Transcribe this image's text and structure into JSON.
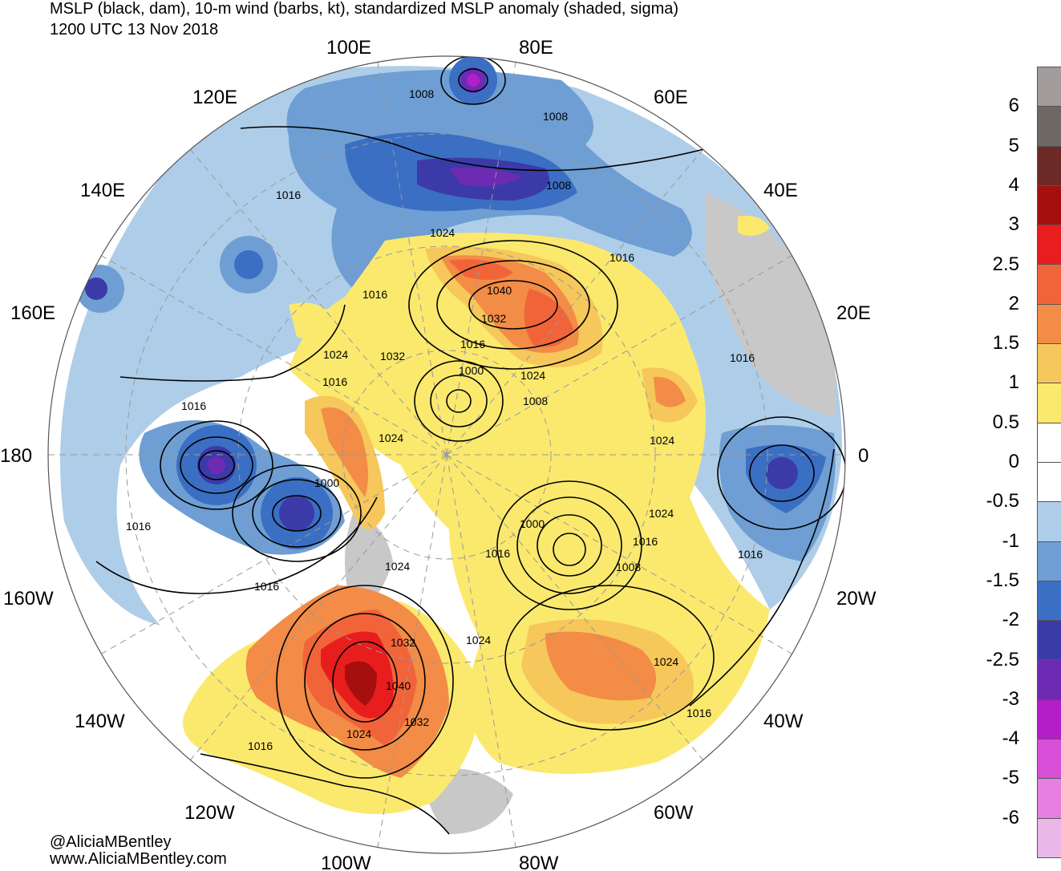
{
  "title": {
    "line1": "MSLP (black, dam), 10-m wind (barbs, kt), standardized MSLP anomaly (shaded, sigma)",
    "line2": "1200 UTC 13 Nov 2018"
  },
  "credits": {
    "twitter": "@AliciaMBentley",
    "website": "www.AliciaMBentley.com"
  },
  "longitude_labels": [
    "100E",
    "80E",
    "120E",
    "60E",
    "140E",
    "40E",
    "160E",
    "20E",
    "180",
    "0",
    "160W",
    "20W",
    "140W",
    "40W",
    "120W",
    "60W",
    "100W",
    "80W"
  ],
  "isobar_labels": [
    "1008",
    "1008",
    "1008",
    "1016",
    "1024",
    "1016",
    "1016",
    "1040",
    "1032",
    "1016",
    "1024",
    "1032",
    "1016",
    "1000",
    "1024",
    "1008",
    "1016",
    "1016",
    "1024",
    "1024",
    "1000",
    "1000",
    "1016",
    "1016",
    "1024",
    "1016",
    "1008",
    "1016",
    "1024",
    "1032",
    "1024",
    "1040",
    "1024",
    "1032",
    "1016",
    "1016",
    "1024",
    "1016"
  ],
  "colorbar": {
    "labels": [
      "6",
      "5",
      "4",
      "3",
      "2.5",
      "2",
      "1.5",
      "1",
      "0.5",
      "0",
      "-0.5",
      "-1",
      "-1.5",
      "-2",
      "-2.5",
      "-3",
      "-4",
      "-5",
      "-6"
    ],
    "colors": [
      "#a39c9c",
      "#6e6764",
      "#6b2a27",
      "#a70f0f",
      "#e81e1e",
      "#f1643a",
      "#f28c46",
      "#f6c75a",
      "#fbe96e",
      "#ffffff",
      "#ffffff",
      "#aecde8",
      "#6e9ed3",
      "#3b6fc3",
      "#3c3aa8",
      "#6d2ab3",
      "#b41ec8",
      "#d84fd8",
      "#e77ee2",
      "#e9b8e8"
    ]
  },
  "map_colors": {
    "ocean": "#ffffff",
    "land_outline": "#555555",
    "isobar": "#000000",
    "graticule": "#888888"
  }
}
